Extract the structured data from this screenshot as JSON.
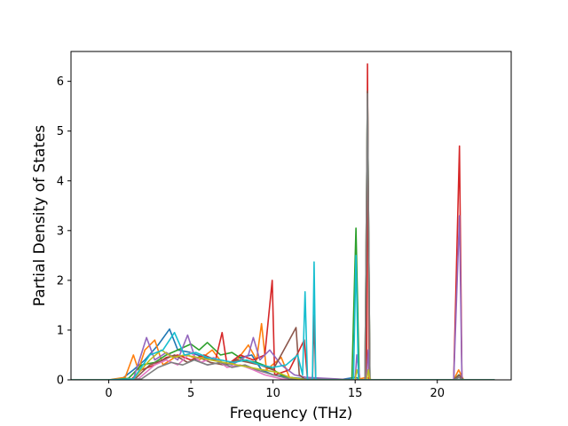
{
  "chart_data": {
    "type": "line",
    "title": "",
    "xlabel": "Frequency (THz)",
    "ylabel": "Partial Density of States",
    "xlim": [
      -2.3,
      24.5
    ],
    "ylim": [
      0,
      6.6
    ],
    "x_ticks": [
      0,
      5,
      10,
      15,
      20
    ],
    "y_ticks": [
      0,
      1,
      2,
      3,
      4,
      5,
      6
    ],
    "grid": false,
    "legend": "none",
    "series": [
      {
        "color": "#1f77b4",
        "points": [
          [
            -2.3,
            0
          ],
          [
            0,
            0
          ],
          [
            0.8,
            0.02
          ],
          [
            1.5,
            0.2
          ],
          [
            2.2,
            0.4
          ],
          [
            3,
            0.7
          ],
          [
            3.7,
            1.02
          ],
          [
            4.2,
            0.6
          ],
          [
            5,
            0.55
          ],
          [
            5.8,
            0.45
          ],
          [
            6.5,
            0.4
          ],
          [
            7.2,
            0.3
          ],
          [
            8,
            0.45
          ],
          [
            8.7,
            0.5
          ],
          [
            9.3,
            0.2
          ],
          [
            10,
            0.1
          ],
          [
            11,
            0.05
          ],
          [
            12,
            0.02
          ],
          [
            14,
            0
          ],
          [
            15,
            0.05
          ],
          [
            15.5,
            0
          ],
          [
            16,
            0
          ],
          [
            21,
            0
          ],
          [
            21.3,
            0.05
          ],
          [
            21.6,
            0
          ],
          [
            23.5,
            0
          ]
        ]
      },
      {
        "color": "#ff7f0e",
        "points": [
          [
            -2.3,
            0
          ],
          [
            0,
            0
          ],
          [
            1,
            0.05
          ],
          [
            1.5,
            0.5
          ],
          [
            1.8,
            0.2
          ],
          [
            2.2,
            0.6
          ],
          [
            2.8,
            0.8
          ],
          [
            3.3,
            0.3
          ],
          [
            4,
            0.45
          ],
          [
            4.8,
            0.5
          ],
          [
            5.5,
            0.4
          ],
          [
            6.3,
            0.6
          ],
          [
            7,
            0.3
          ],
          [
            7.7,
            0.35
          ],
          [
            8.5,
            0.7
          ],
          [
            9,
            0.4
          ],
          [
            9.3,
            1.13
          ],
          [
            9.6,
            0.2
          ],
          [
            10.5,
            0.45
          ],
          [
            11,
            0.05
          ],
          [
            12,
            0
          ],
          [
            15,
            0
          ],
          [
            15.7,
            0.05
          ],
          [
            16,
            0
          ],
          [
            21,
            0
          ],
          [
            21.3,
            0.2
          ],
          [
            21.6,
            0
          ],
          [
            23.5,
            0
          ]
        ]
      },
      {
        "color": "#2ca02c",
        "points": [
          [
            -2.3,
            0
          ],
          [
            0,
            0
          ],
          [
            1.2,
            0.03
          ],
          [
            2,
            0.3
          ],
          [
            2.8,
            0.35
          ],
          [
            3.5,
            0.5
          ],
          [
            4.2,
            0.6
          ],
          [
            5,
            0.72
          ],
          [
            5.5,
            0.6
          ],
          [
            6,
            0.75
          ],
          [
            6.8,
            0.5
          ],
          [
            7.5,
            0.55
          ],
          [
            8.2,
            0.4
          ],
          [
            9,
            0.35
          ],
          [
            9.8,
            0.25
          ],
          [
            10.5,
            0.1
          ],
          [
            11,
            0.05
          ],
          [
            12,
            0
          ],
          [
            14.8,
            0
          ],
          [
            15.05,
            3.05
          ],
          [
            15.25,
            0
          ],
          [
            15.6,
            0
          ],
          [
            15.75,
            5.8
          ],
          [
            15.9,
            0
          ],
          [
            21,
            0
          ],
          [
            21.3,
            0.1
          ],
          [
            21.6,
            0
          ],
          [
            23.5,
            0
          ]
        ]
      },
      {
        "color": "#d62728",
        "points": [
          [
            -2.3,
            0
          ],
          [
            0,
            0
          ],
          [
            1.4,
            0.02
          ],
          [
            2,
            0.2
          ],
          [
            2.8,
            0.3
          ],
          [
            3.5,
            0.45
          ],
          [
            4.2,
            0.5
          ],
          [
            5,
            0.4
          ],
          [
            5.8,
            0.5
          ],
          [
            6.5,
            0.4
          ],
          [
            6.9,
            0.95
          ],
          [
            7.2,
            0.3
          ],
          [
            8,
            0.5
          ],
          [
            8.8,
            0.4
          ],
          [
            9.5,
            0.5
          ],
          [
            9.95,
            2.0
          ],
          [
            10.1,
            0.1
          ],
          [
            11,
            0.2
          ],
          [
            11.9,
            0.8
          ],
          [
            12.1,
            0
          ],
          [
            12.4,
            0
          ],
          [
            12.5,
            1.3
          ],
          [
            12.6,
            0
          ],
          [
            15,
            0
          ],
          [
            15.7,
            0
          ],
          [
            15.75,
            6.35
          ],
          [
            15.85,
            0
          ],
          [
            21,
            0
          ],
          [
            21.35,
            4.7
          ],
          [
            21.5,
            0
          ],
          [
            23.5,
            0
          ]
        ]
      },
      {
        "color": "#9467bd",
        "points": [
          [
            -2.3,
            0
          ],
          [
            0,
            0
          ],
          [
            1.5,
            0.02
          ],
          [
            2.3,
            0.85
          ],
          [
            2.8,
            0.4
          ],
          [
            3.5,
            0.55
          ],
          [
            4.2,
            0.4
          ],
          [
            4.8,
            0.9
          ],
          [
            5.3,
            0.4
          ],
          [
            6,
            0.3
          ],
          [
            6.8,
            0.35
          ],
          [
            7.5,
            0.3
          ],
          [
            8.5,
            0.5
          ],
          [
            8.8,
            0.85
          ],
          [
            9.2,
            0.4
          ],
          [
            9.8,
            0.6
          ],
          [
            10.5,
            0.3
          ],
          [
            11.3,
            0.1
          ],
          [
            12,
            0.05
          ],
          [
            15,
            0
          ],
          [
            15.1,
            0.5
          ],
          [
            15.3,
            0
          ],
          [
            15.7,
            0
          ],
          [
            15.8,
            0.6
          ],
          [
            15.9,
            0
          ],
          [
            21,
            0
          ],
          [
            21.35,
            3.3
          ],
          [
            21.5,
            0
          ],
          [
            23.5,
            0
          ]
        ]
      },
      {
        "color": "#8c564b",
        "points": [
          [
            -2.3,
            0
          ],
          [
            0,
            0
          ],
          [
            1.6,
            0.02
          ],
          [
            2.5,
            0.3
          ],
          [
            3.3,
            0.4
          ],
          [
            4,
            0.5
          ],
          [
            4.8,
            0.35
          ],
          [
            5.5,
            0.45
          ],
          [
            6.2,
            0.35
          ],
          [
            7,
            0.3
          ],
          [
            7.8,
            0.4
          ],
          [
            8.5,
            0.35
          ],
          [
            9.2,
            0.3
          ],
          [
            10,
            0.2
          ],
          [
            11.4,
            1.05
          ],
          [
            11.6,
            0.1
          ],
          [
            12,
            0
          ],
          [
            15.6,
            0
          ],
          [
            15.75,
            5.8
          ],
          [
            15.9,
            0
          ],
          [
            21,
            0
          ],
          [
            21.35,
            0.1
          ],
          [
            21.5,
            0
          ],
          [
            23.5,
            0
          ]
        ]
      },
      {
        "color": "#e377c2",
        "points": [
          [
            -2.3,
            0
          ],
          [
            0,
            0
          ],
          [
            1.8,
            0.02
          ],
          [
            2.8,
            0.3
          ],
          [
            3.5,
            0.4
          ],
          [
            4.2,
            0.3
          ],
          [
            5,
            0.55
          ],
          [
            5.6,
            0.35
          ],
          [
            6.4,
            0.45
          ],
          [
            7.2,
            0.25
          ],
          [
            8,
            0.3
          ],
          [
            8.8,
            0.2
          ],
          [
            9.5,
            0.1
          ],
          [
            10.5,
            0.02
          ],
          [
            12,
            0
          ],
          [
            23.5,
            0
          ]
        ]
      },
      {
        "color": "#7f7f7f",
        "points": [
          [
            -2.3,
            0
          ],
          [
            0,
            0
          ],
          [
            2,
            0.02
          ],
          [
            3,
            0.25
          ],
          [
            3.8,
            0.35
          ],
          [
            4.5,
            0.3
          ],
          [
            5.2,
            0.4
          ],
          [
            6,
            0.3
          ],
          [
            6.8,
            0.35
          ],
          [
            7.5,
            0.25
          ],
          [
            8.3,
            0.3
          ],
          [
            9,
            0.2
          ],
          [
            10,
            0.1
          ],
          [
            11,
            0.02
          ],
          [
            15.6,
            0
          ],
          [
            15.75,
            5.75
          ],
          [
            15.9,
            0
          ],
          [
            21,
            0
          ],
          [
            21.35,
            0.05
          ],
          [
            21.5,
            0
          ],
          [
            23.5,
            0
          ]
        ]
      },
      {
        "color": "#bcbd22",
        "points": [
          [
            -2.3,
            0
          ],
          [
            0,
            0
          ],
          [
            1.5,
            0.02
          ],
          [
            2.5,
            0.4
          ],
          [
            3.2,
            0.6
          ],
          [
            3.9,
            0.45
          ],
          [
            4.6,
            0.5
          ],
          [
            5.4,
            0.45
          ],
          [
            6.2,
            0.4
          ],
          [
            7,
            0.35
          ],
          [
            7.8,
            0.3
          ],
          [
            8.6,
            0.25
          ],
          [
            9.4,
            0.2
          ],
          [
            10.3,
            0.15
          ],
          [
            11,
            0.05
          ],
          [
            12,
            0
          ],
          [
            15,
            0
          ],
          [
            15.1,
            0.2
          ],
          [
            15.3,
            0
          ],
          [
            15.7,
            0
          ],
          [
            15.8,
            0.2
          ],
          [
            15.9,
            0
          ],
          [
            23.5,
            0
          ]
        ]
      },
      {
        "color": "#17becf",
        "points": [
          [
            -2.3,
            0
          ],
          [
            0,
            0
          ],
          [
            1.5,
            0.02
          ],
          [
            2.5,
            0.5
          ],
          [
            3.3,
            0.6
          ],
          [
            4,
            0.95
          ],
          [
            4.6,
            0.5
          ],
          [
            5.3,
            0.55
          ],
          [
            6,
            0.45
          ],
          [
            6.8,
            0.4
          ],
          [
            7.6,
            0.35
          ],
          [
            8.4,
            0.4
          ],
          [
            9.2,
            0.3
          ],
          [
            10,
            0.25
          ],
          [
            10.8,
            0.3
          ],
          [
            11.5,
            0.5
          ],
          [
            11.8,
            0.1
          ],
          [
            11.95,
            1.77
          ],
          [
            12.1,
            0
          ],
          [
            12.4,
            0
          ],
          [
            12.5,
            2.37
          ],
          [
            12.6,
            0
          ],
          [
            14.9,
            0
          ],
          [
            15.05,
            2.5
          ],
          [
            15.2,
            0
          ],
          [
            23.5,
            0
          ]
        ]
      }
    ]
  }
}
